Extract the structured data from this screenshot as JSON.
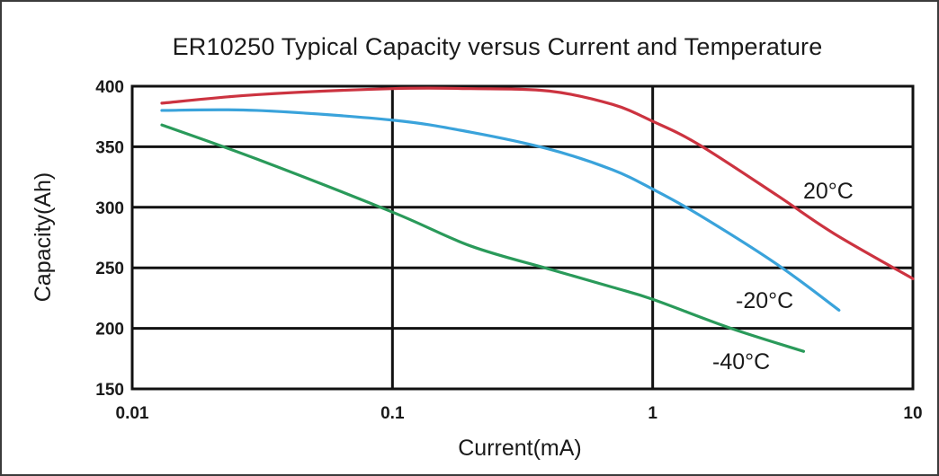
{
  "chart_data": {
    "type": "line",
    "title": "ER10250 Typical Capacity versus Current and Temperature",
    "xlabel": "Current(mA)",
    "ylabel": "Capacity(Ah)",
    "x_scale": "log",
    "xlim": [
      0.01,
      10
    ],
    "ylim": [
      150,
      400
    ],
    "x_ticks": [
      0.01,
      0.1,
      1,
      10
    ],
    "x_tick_labels": [
      "0.01",
      "0.1",
      "1",
      "10"
    ],
    "y_ticks": [
      150,
      200,
      250,
      300,
      350,
      400
    ],
    "y_tick_labels": [
      "150",
      "200",
      "250",
      "300",
      "350",
      "400"
    ],
    "grid": true,
    "legend": "inline labels at line ends",
    "series": [
      {
        "name": "20°C",
        "color": "#cc3340",
        "x": [
          0.013,
          0.03,
          0.1,
          0.2,
          0.4,
          0.7,
          1.0,
          1.5,
          3.0,
          5.0,
          10.0
        ],
        "y": [
          386,
          393,
          398,
          398,
          396,
          385,
          371,
          352,
          310,
          278,
          241
        ]
      },
      {
        "name": "-20°C",
        "color": "#3aa3db",
        "x": [
          0.013,
          0.03,
          0.1,
          0.2,
          0.4,
          0.7,
          1.0,
          1.5,
          3.0,
          5.2
        ],
        "y": [
          380,
          380,
          372,
          362,
          348,
          331,
          315,
          294,
          253,
          215
        ]
      },
      {
        "name": "-40°C",
        "color": "#2a9a5a",
        "x": [
          0.013,
          0.03,
          0.1,
          0.2,
          0.4,
          0.7,
          1.0,
          2.0,
          3.8
        ],
        "y": [
          368,
          340,
          296,
          268,
          249,
          234,
          224,
          200,
          181
        ]
      }
    ],
    "series_label_text": [
      "20°C",
      "-20°C",
      "-40°C"
    ]
  }
}
